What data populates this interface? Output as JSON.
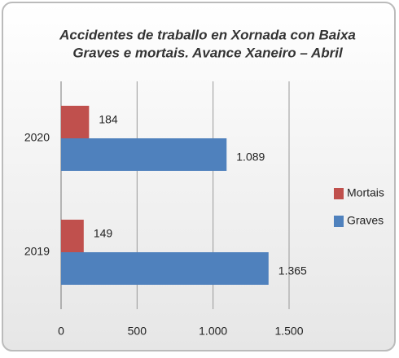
{
  "chart_data": {
    "type": "bar",
    "orientation": "horizontal",
    "title": "Accidentes de traballo en Xornada con Baixa",
    "subtitle": "Graves e mortais. Avance Xaneiro – Abril",
    "categories": [
      "2020",
      "2019"
    ],
    "series": [
      {
        "name": "Mortais",
        "color": "#c0504d",
        "values": [
          184,
          149
        ]
      },
      {
        "name": "Graves",
        "color": "#4f81bd",
        "values": [
          1089,
          1365
        ],
        "value_labels": [
          "1.089",
          "1.365"
        ]
      }
    ],
    "xlim": [
      0,
      1500
    ],
    "xticks": [
      0,
      500,
      {
        "value": 1000,
        "label": "1.000"
      },
      {
        "value": 1500,
        "label": "1.500"
      }
    ],
    "grid": true,
    "legend": "right"
  }
}
